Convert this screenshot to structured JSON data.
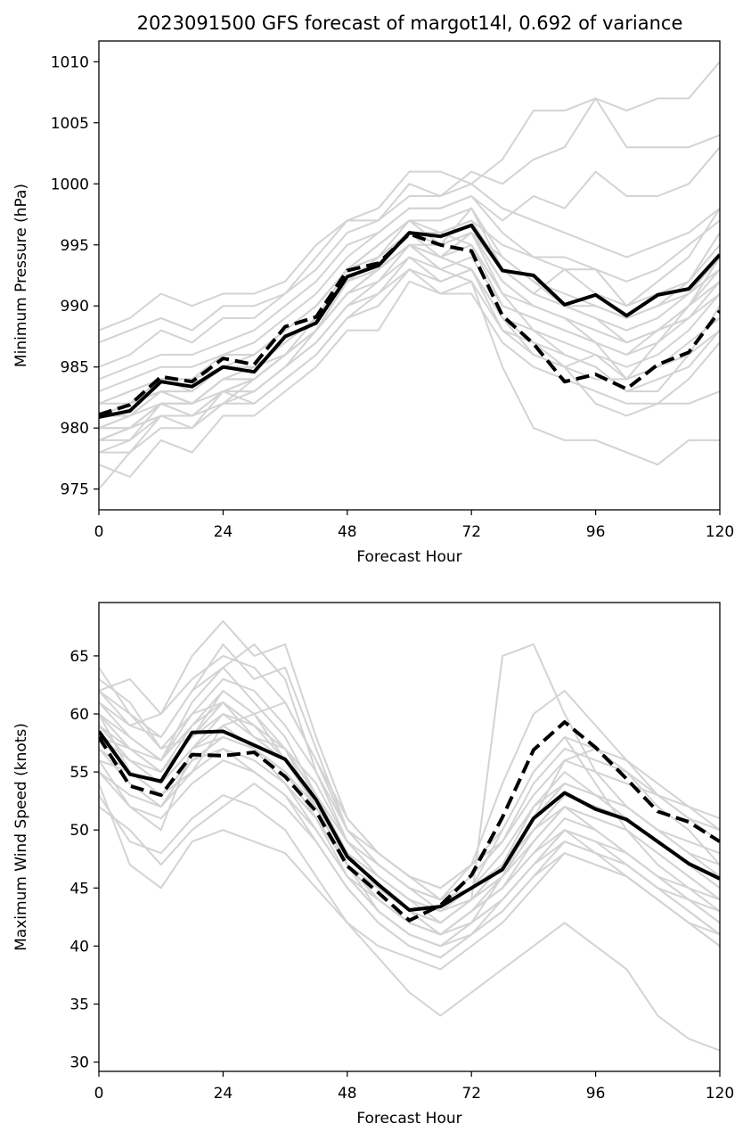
{
  "figure": {
    "title": "2023091500 GFS forecast of margot14l, 0.692 of variance"
  },
  "colors": {
    "ensemble": "#d3d3d3",
    "highlight": "#000000"
  },
  "chart_data": [
    {
      "type": "line",
      "title": "2023091500 GFS forecast of margot14l, 0.692 of variance",
      "xlabel": "Forecast Hour",
      "ylabel": "Minimum Pressure (hPa)",
      "xlim": [
        0,
        120
      ],
      "ylim": [
        973.3,
        1011.7
      ],
      "xticks": [
        0,
        24,
        48,
        72,
        96,
        120
      ],
      "yticks": [
        975,
        980,
        985,
        990,
        995,
        1000,
        1005,
        1010
      ],
      "grid": false,
      "x": [
        0,
        6,
        12,
        18,
        24,
        30,
        36,
        42,
        48,
        54,
        60,
        66,
        72,
        78,
        84,
        90,
        96,
        102,
        108,
        114,
        120
      ],
      "highlight_series": [
        {
          "style": "solid",
          "values": [
            980.9,
            981.4,
            983.8,
            983.4,
            985.0,
            984.6,
            987.5,
            988.6,
            992.4,
            993.3,
            996.0,
            995.7,
            996.6,
            992.9,
            992.5,
            990.1,
            990.9,
            989.2,
            990.9,
            991.4,
            994.2
          ]
        },
        {
          "style": "dashed",
          "values": [
            981.1,
            981.9,
            984.2,
            983.8,
            985.7,
            985.2,
            988.3,
            989.1,
            992.9,
            993.5,
            995.9,
            995.0,
            994.5,
            989.2,
            986.9,
            983.8,
            984.4,
            983.2,
            985.2,
            986.2,
            989.6
          ]
        }
      ],
      "ensemble": [
        [
          975,
          978,
          981,
          981,
          982,
          984,
          986,
          988,
          991,
          993,
          995,
          995,
          996,
          992,
          990,
          989,
          987,
          984,
          987,
          990,
          994
        ],
        [
          978,
          978,
          980,
          980,
          983,
          983,
          985,
          987,
          990,
          992,
          994,
          993,
          992,
          985,
          980,
          979,
          979,
          978,
          977,
          979,
          979
        ],
        [
          979,
          980,
          982,
          982,
          984,
          985,
          986,
          988,
          992,
          994,
          996,
          994,
          993,
          989,
          986,
          985,
          982,
          981,
          982,
          982,
          983
        ],
        [
          981,
          982,
          983,
          983,
          985,
          985,
          987,
          989,
          992,
          994,
          996,
          996,
          995,
          991,
          988,
          986,
          985,
          983,
          983,
          986,
          990
        ],
        [
          982,
          983,
          984,
          984,
          986,
          986,
          988,
          990,
          993,
          995,
          997,
          997,
          998,
          994,
          992,
          990,
          989,
          987,
          988,
          990,
          993
        ],
        [
          984,
          985,
          986,
          986,
          987,
          988,
          990,
          992,
          995,
          996,
          998,
          998,
          999,
          996,
          994,
          993,
          991,
          990,
          991,
          992,
          995
        ],
        [
          987,
          988,
          989,
          988,
          990,
          990,
          991,
          993,
          996,
          997,
          999,
          999,
          1000,
          998,
          997,
          996,
          995,
          994,
          995,
          996,
          998
        ],
        [
          988,
          989,
          991,
          990,
          991,
          991,
          992,
          995,
          997,
          998,
          1001,
          1001,
          1000,
          1002,
          1006,
          1006,
          1007,
          1006,
          1007,
          1007,
          1010
        ],
        [
          985,
          986,
          988,
          987,
          989,
          989,
          991,
          994,
          997,
          997,
          1000,
          999,
          1001,
          1000,
          1002,
          1003,
          1007,
          1003,
          1003,
          1003,
          1004
        ],
        [
          983,
          984,
          985,
          985,
          986,
          987,
          989,
          991,
          994,
          996,
          998,
          998,
          999,
          997,
          999,
          998,
          1001,
          999,
          999,
          1000,
          1003
        ],
        [
          980,
          981,
          983,
          982,
          984,
          985,
          987,
          989,
          993,
          994,
          997,
          995,
          998,
          993,
          991,
          993,
          993,
          990,
          992,
          994,
          998
        ],
        [
          979,
          980,
          982,
          981,
          983,
          984,
          986,
          988,
          991,
          993,
          995,
          993,
          994,
          990,
          989,
          988,
          987,
          986,
          988,
          990,
          992
        ],
        [
          981,
          981,
          983,
          982,
          984,
          984,
          986,
          988,
          992,
          993,
          995,
          994,
          993,
          988,
          987,
          985,
          986,
          984,
          985,
          986,
          988
        ],
        [
          980,
          980,
          981,
          981,
          982,
          983,
          985,
          987,
          990,
          991,
          994,
          992,
          993,
          989,
          988,
          987,
          986,
          985,
          986,
          988,
          991
        ],
        [
          978,
          979,
          981,
          981,
          983,
          982,
          984,
          986,
          989,
          990,
          993,
          991,
          992,
          988,
          986,
          985,
          984,
          984,
          985,
          987,
          989
        ],
        [
          977,
          976,
          979,
          978,
          981,
          981,
          983,
          985,
          988,
          988,
          992,
          991,
          991,
          987,
          985,
          984,
          983,
          982,
          982,
          984,
          987
        ],
        [
          982,
          983,
          984,
          984,
          985,
          986,
          988,
          990,
          993,
          995,
          997,
          996,
          997,
          993,
          991,
          990,
          989,
          988,
          989,
          991,
          994
        ],
        [
          981,
          982,
          984,
          983,
          985,
          985,
          987,
          989,
          992,
          994,
          996,
          995,
          996,
          991,
          990,
          989,
          988,
          987,
          988,
          989,
          992
        ],
        [
          979,
          979,
          982,
          981,
          983,
          983,
          985,
          988,
          991,
          992,
          995,
          994,
          995,
          990,
          989,
          988,
          987,
          986,
          987,
          989,
          991
        ],
        [
          980,
          981,
          982,
          982,
          984,
          984,
          986,
          989,
          992,
          993,
          996,
          995,
          996,
          994,
          992,
          991,
          990,
          989,
          990,
          991,
          993
        ],
        [
          982,
          982,
          983,
          983,
          985,
          986,
          988,
          990,
          993,
          994,
          996,
          996,
          997,
          995,
          994,
          994,
          993,
          992,
          993,
          995,
          997
        ],
        [
          979,
          980,
          981,
          980,
          982,
          982,
          984,
          986,
          989,
          991,
          993,
          992,
          993,
          989,
          987,
          986,
          985,
          983,
          984,
          985,
          988
        ],
        [
          980,
          980,
          982,
          982,
          983,
          984,
          986,
          988,
          991,
          993,
          995,
          994,
          996,
          993,
          991,
          990,
          990,
          989,
          990,
          992,
          996
        ]
      ]
    },
    {
      "type": "line",
      "title": "",
      "xlabel": "Forecast Hour",
      "ylabel": "Maximum Wind Speed (knots)",
      "xlim": [
        0,
        120
      ],
      "ylim": [
        29.2,
        69.6
      ],
      "xticks": [
        0,
        24,
        48,
        72,
        96,
        120
      ],
      "yticks": [
        30,
        35,
        40,
        45,
        50,
        55,
        60,
        65
      ],
      "grid": false,
      "x": [
        0,
        6,
        12,
        18,
        24,
        30,
        36,
        42,
        48,
        54,
        60,
        66,
        72,
        78,
        84,
        90,
        96,
        102,
        108,
        114,
        120
      ],
      "highlight_series": [
        {
          "style": "solid",
          "values": [
            58.5,
            54.8,
            54.2,
            58.4,
            58.5,
            57.3,
            56.1,
            52.6,
            47.7,
            45.3,
            43.1,
            43.4,
            45.0,
            46.6,
            51.0,
            53.2,
            51.8,
            50.9,
            49.0,
            47.1,
            45.8
          ]
        },
        {
          "style": "dashed",
          "values": [
            58.0,
            53.8,
            53.0,
            56.5,
            56.4,
            56.7,
            54.6,
            51.6,
            46.9,
            44.6,
            42.2,
            43.5,
            46.1,
            51.1,
            56.9,
            59.3,
            57.1,
            54.4,
            51.6,
            50.7,
            49.0
          ]
        }
      ],
      "ensemble": [
        [
          64,
          60,
          58,
          62,
          66,
          63,
          64,
          57,
          50,
          47,
          45,
          43,
          45,
          50,
          55,
          58,
          54,
          50,
          47,
          45,
          44
        ],
        [
          62,
          59,
          60,
          65,
          68,
          65,
          66,
          58,
          51,
          48,
          46,
          44,
          47,
          54,
          60,
          62,
          59,
          56,
          53,
          51,
          50
        ],
        [
          60,
          58,
          56,
          61,
          64,
          66,
          63,
          55,
          49,
          46,
          44,
          42,
          44,
          47,
          52,
          55,
          53,
          52,
          50,
          48,
          47
        ],
        [
          56,
          52,
          50,
          57,
          60,
          59,
          57,
          53,
          48,
          45,
          43,
          41,
          43,
          45,
          49,
          52,
          50,
          48,
          46,
          44,
          42
        ],
        [
          54,
          47,
          45,
          49,
          50,
          49,
          48,
          45,
          42,
          40,
          39,
          38,
          40,
          42,
          45,
          48,
          47,
          46,
          44,
          42,
          40
        ],
        [
          52,
          50,
          47,
          50,
          52,
          54,
          52,
          49,
          45,
          42,
          40,
          39,
          41,
          44,
          47,
          50,
          49,
          47,
          45,
          43,
          41
        ],
        [
          63,
          61,
          57,
          58,
          62,
          60,
          61,
          56,
          50,
          48,
          46,
          45,
          47,
          49,
          53,
          56,
          55,
          54,
          53,
          52,
          51
        ],
        [
          57,
          55,
          53,
          55,
          59,
          57,
          55,
          52,
          48,
          45,
          43,
          42,
          44,
          46,
          50,
          53,
          52,
          51,
          49,
          47,
          45
        ],
        [
          59,
          57,
          55,
          58,
          61,
          58,
          57,
          54,
          49,
          46,
          44,
          43,
          45,
          48,
          52,
          54,
          53,
          52,
          50,
          49,
          48
        ],
        [
          55,
          53,
          52,
          56,
          57,
          56,
          54,
          51,
          47,
          44,
          42,
          41,
          43,
          45,
          48,
          51,
          50,
          48,
          46,
          44,
          43
        ],
        [
          61,
          59,
          58,
          62,
          64,
          61,
          58,
          53,
          47,
          43,
          41,
          40,
          42,
          46,
          51,
          56,
          57,
          55,
          52,
          50,
          47
        ],
        [
          58,
          56,
          54,
          57,
          59,
          60,
          56,
          52,
          47,
          44,
          42,
          41,
          42,
          44,
          47,
          50,
          48,
          46,
          44,
          42,
          40
        ],
        [
          60,
          55,
          53,
          56,
          58,
          57,
          55,
          51,
          46,
          43,
          41,
          40,
          41,
          43,
          46,
          49,
          48,
          47,
          45,
          43,
          41
        ],
        [
          62,
          60,
          57,
          60,
          63,
          62,
          59,
          55,
          50,
          47,
          45,
          44,
          46,
          49,
          54,
          57,
          56,
          55,
          53,
          51,
          49
        ],
        [
          57,
          54,
          52,
          55,
          57,
          55,
          53,
          50,
          46,
          43,
          41,
          40,
          42,
          44,
          47,
          49,
          48,
          47,
          45,
          44,
          42
        ],
        [
          59,
          56,
          55,
          59,
          62,
          60,
          57,
          53,
          48,
          45,
          43,
          42,
          44,
          47,
          51,
          54,
          53,
          51,
          49,
          47,
          45
        ],
        [
          61,
          58,
          56,
          60,
          61,
          59,
          56,
          52,
          48,
          46,
          44,
          43,
          44,
          46,
          49,
          52,
          51,
          50,
          48,
          46,
          44
        ],
        [
          58,
          57,
          55,
          58,
          60,
          58,
          56,
          53,
          49,
          47,
          45,
          44,
          45,
          47,
          50,
          52,
          51,
          50,
          48,
          46,
          44
        ],
        [
          56,
          55,
          54,
          57,
          58,
          57,
          54,
          50,
          46,
          44,
          42,
          41,
          43,
          45,
          48,
          50,
          49,
          48,
          46,
          45,
          43
        ],
        [
          62,
          63,
          60,
          63,
          65,
          64,
          61,
          56,
          51,
          48,
          46,
          45,
          47,
          50,
          55,
          58,
          57,
          56,
          54,
          52,
          50
        ],
        [
          55,
          52,
          51,
          54,
          56,
          55,
          53,
          49,
          45,
          42,
          40,
          39,
          41,
          43,
          46,
          48,
          47,
          46,
          44,
          42,
          41
        ],
        [
          60,
          57,
          56,
          59,
          61,
          59,
          57,
          52,
          47,
          44,
          42,
          41,
          43,
          46,
          50,
          53,
          52,
          51,
          49,
          47,
          46
        ],
        [
          53,
          49,
          48,
          51,
          53,
          52,
          50,
          46,
          42,
          39,
          36,
          34,
          36,
          38,
          40,
          42,
          40,
          38,
          34,
          32,
          31
        ],
        [
          58,
          55,
          53,
          56,
          58,
          57,
          55,
          51,
          47,
          45,
          43,
          42,
          44,
          65,
          66,
          60,
          55,
          52,
          50,
          48,
          46
        ]
      ]
    }
  ]
}
